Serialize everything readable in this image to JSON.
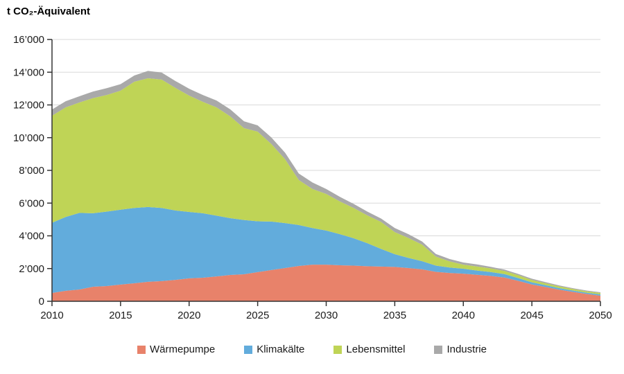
{
  "title": "t CO₂-Äquivalent",
  "colors": {
    "grid": "#d9d9d9",
    "axis": "#333333",
    "text": "#1a1a1a"
  },
  "chart_data": {
    "type": "area",
    "stacked": true,
    "title": "t CO₂-Äquivalent",
    "xlabel": "",
    "ylabel": "t CO₂-Äquivalent",
    "xlim": [
      2010,
      2050
    ],
    "ylim": [
      0,
      16000
    ],
    "grid": "horizontal",
    "legend_position": "bottom",
    "x_ticks": [
      2010,
      2015,
      2020,
      2025,
      2030,
      2035,
      2040,
      2045,
      2050
    ],
    "x_tick_labels": [
      "2010",
      "2015",
      "2020",
      "2025",
      "2030",
      "2035",
      "2040",
      "2045",
      "2050"
    ],
    "y_ticks": [
      0,
      2000,
      4000,
      6000,
      8000,
      10000,
      12000,
      14000,
      16000
    ],
    "y_tick_labels": [
      "0",
      "2’000",
      "4’000",
      "6’000",
      "8’000",
      "10’000",
      "12’000",
      "14’000",
      "16’000"
    ],
    "x": [
      2010,
      2011,
      2012,
      2013,
      2014,
      2015,
      2016,
      2017,
      2018,
      2019,
      2020,
      2021,
      2022,
      2023,
      2024,
      2025,
      2026,
      2027,
      2028,
      2029,
      2030,
      2031,
      2032,
      2033,
      2034,
      2035,
      2036,
      2037,
      2038,
      2039,
      2040,
      2041,
      2042,
      2043,
      2044,
      2045,
      2046,
      2047,
      2048,
      2049,
      2050
    ],
    "series": [
      {
        "name": "Wärmepumpe",
        "key": "waermepumpe",
        "color": "#e8826a",
        "values": [
          510,
          640,
          720,
          890,
          930,
          1020,
          1100,
          1190,
          1230,
          1310,
          1400,
          1440,
          1520,
          1610,
          1650,
          1780,
          1910,
          2030,
          2160,
          2240,
          2240,
          2200,
          2180,
          2140,
          2120,
          2100,
          2030,
          1950,
          1800,
          1730,
          1690,
          1620,
          1550,
          1450,
          1250,
          1030,
          870,
          710,
          570,
          450,
          340
        ]
      },
      {
        "name": "Klimakälte",
        "key": "klimakaelte",
        "color": "#62acdc",
        "values": [
          4290,
          4510,
          4680,
          4490,
          4550,
          4580,
          4600,
          4570,
          4470,
          4240,
          4060,
          3940,
          3710,
          3470,
          3320,
          3110,
          2960,
          2750,
          2500,
          2240,
          2080,
          1900,
          1670,
          1410,
          1080,
          780,
          620,
          500,
          380,
          330,
          300,
          260,
          240,
          210,
          170,
          130,
          110,
          95,
          85,
          75,
          80
        ]
      },
      {
        "name": "Lebensmittel",
        "key": "lebensmittel",
        "color": "#bfd456",
        "values": [
          6540,
          6700,
          6750,
          7040,
          7130,
          7270,
          7720,
          7870,
          7850,
          7490,
          7110,
          6810,
          6620,
          6220,
          5610,
          5480,
          4740,
          3900,
          2750,
          2380,
          2240,
          2000,
          1850,
          1700,
          1650,
          1350,
          1220,
          1010,
          550,
          380,
          250,
          250,
          220,
          190,
          170,
          140,
          120,
          105,
          95,
          85,
          90
        ]
      },
      {
        "name": "Industrie",
        "key": "industrie",
        "color": "#a9a9a9",
        "values": [
          380,
          380,
          380,
          400,
          420,
          400,
          380,
          450,
          430,
          420,
          420,
          420,
          420,
          430,
          420,
          380,
          400,
          400,
          400,
          400,
          300,
          280,
          250,
          230,
          210,
          250,
          230,
          190,
          160,
          140,
          130,
          120,
          100,
          90,
          80,
          80,
          70,
          60,
          50,
          45,
          40
        ]
      }
    ]
  }
}
